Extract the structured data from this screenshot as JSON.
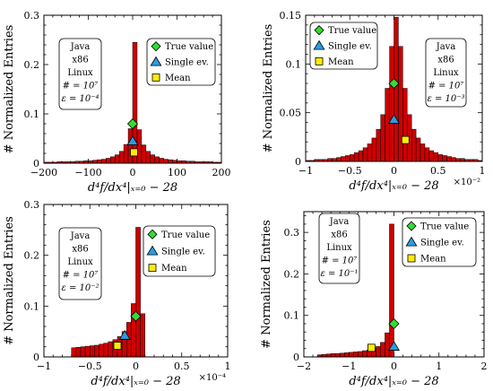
{
  "colors": {
    "bar_fill": "#cc0000",
    "bar_edge": "#000000",
    "true_value": "#33dd33",
    "single_ev": "#2a9de0",
    "mean": "#ffee00"
  },
  "chart_data": [
    {
      "type": "bar",
      "xlim": [
        -200,
        200
      ],
      "ylim": [
        0,
        0.3
      ],
      "xticks": [
        -200,
        -100,
        0,
        100,
        200
      ],
      "xtick_labels": [
        "−200",
        "−100",
        "0",
        "100",
        "200"
      ],
      "yticks": [
        0,
        0.1,
        0.2,
        0.3
      ],
      "ytick_labels": [
        "0",
        "0.1",
        "0.2",
        "0.3"
      ],
      "xlabel": "d⁴f/dx⁴|ₓ₌₀ − 28",
      "ylabel": "# Normalized Entries",
      "x_multiplier": "",
      "info": [
        "Java",
        "x86",
        "Linux",
        "# = 10⁷",
        "ε = 10⁻⁴"
      ],
      "legend": [
        "True value",
        "Single ev.",
        "Mean"
      ],
      "bin_start": -200,
      "bin_width": 10,
      "values": [
        0.002,
        0.002,
        0.002,
        0.003,
        0.003,
        0.003,
        0.003,
        0.004,
        0.004,
        0.005,
        0.005,
        0.006,
        0.007,
        0.008,
        0.01,
        0.013,
        0.017,
        0.024,
        0.038,
        0.07,
        0.245,
        0.068,
        0.037,
        0.024,
        0.017,
        0.013,
        0.01,
        0.008,
        0.007,
        0.006,
        0.005,
        0.005,
        0.004,
        0.004,
        0.003,
        0.003,
        0.003,
        0.003,
        0.002,
        0.002
      ],
      "markers": {
        "true_value": [
          0,
          0.08
        ],
        "single_ev": [
          0,
          0.045
        ],
        "mean": [
          3,
          0.022
        ]
      }
    },
    {
      "type": "bar",
      "xlim": [
        -1,
        1
      ],
      "ylim": [
        0,
        0.15
      ],
      "xticks": [
        -1,
        -0.5,
        0,
        0.5,
        1
      ],
      "xtick_labels": [
        "−1",
        "−0.5",
        "0",
        "0.5",
        "1"
      ],
      "yticks": [
        0,
        0.05,
        0.1,
        0.15
      ],
      "ytick_labels": [
        "0",
        "0.05",
        "0.1",
        "0.15"
      ],
      "xlabel": "d⁴f/dx⁴|ₓ₌₀ − 28",
      "ylabel": "# Normalized Entries",
      "x_multiplier": "×10⁻²",
      "info": [
        "Java",
        "x86",
        "Linux",
        "# = 10⁷",
        "ε = 10⁻³"
      ],
      "legend": [
        "True value",
        "Single ev.",
        "Mean"
      ],
      "bin_start": -1,
      "bin_width": 0.05,
      "values": [
        0.001,
        0.001,
        0.002,
        0.002,
        0.002,
        0.003,
        0.003,
        0.004,
        0.005,
        0.006,
        0.007,
        0.009,
        0.011,
        0.014,
        0.018,
        0.024,
        0.033,
        0.048,
        0.075,
        0.118,
        0.148,
        0.118,
        0.075,
        0.048,
        0.033,
        0.024,
        0.018,
        0.014,
        0.011,
        0.009,
        0.007,
        0.006,
        0.005,
        0.004,
        0.003,
        0.003,
        0.002,
        0.002,
        0.002,
        0.001
      ],
      "markers": {
        "true_value": [
          0,
          0.08
        ],
        "single_ev": [
          0,
          0.043
        ],
        "mean": [
          0.13,
          0.022
        ]
      }
    },
    {
      "type": "bar",
      "xlim": [
        -1,
        1
      ],
      "ylim": [
        0,
        0.3
      ],
      "xticks": [
        -1,
        -0.5,
        0,
        0.5,
        1
      ],
      "xtick_labels": [
        "−1",
        "−0.5",
        "0",
        "0.5",
        "1"
      ],
      "yticks": [
        0,
        0.1,
        0.2,
        0.3
      ],
      "ytick_labels": [
        "0",
        "0.1",
        "0.2",
        "0.3"
      ],
      "xlabel": "d⁴f/dx⁴|ₓ₌₀ − 28",
      "ylabel": "# Normalized Entries",
      "x_multiplier": "×10⁻⁴",
      "info": [
        "Java",
        "x86",
        "Linux",
        "# = 10⁷",
        "ε = 10⁻²"
      ],
      "legend": [
        "True value",
        "Single ev.",
        "Mean"
      ],
      "bin_start": -0.7,
      "bin_width": 0.05,
      "values": [
        0.018,
        0.019,
        0.02,
        0.021,
        0.022,
        0.023,
        0.025,
        0.027,
        0.03,
        0.034,
        0.04,
        0.05,
        0.068,
        0.105,
        0.255,
        0.085
      ],
      "markers": {
        "true_value": [
          0,
          0.08
        ],
        "single_ev": [
          -0.12,
          0.042
        ],
        "mean": [
          -0.2,
          0.022
        ]
      }
    },
    {
      "type": "bar",
      "xlim": [
        -2,
        2
      ],
      "ylim": [
        0,
        0.35
      ],
      "xticks": [
        -2,
        -1,
        0,
        1,
        2
      ],
      "xtick_labels": [
        "−2",
        "−1",
        "0",
        "1",
        "2"
      ],
      "yticks": [
        0,
        0.1,
        0.2,
        0.3
      ],
      "ytick_labels": [
        "0",
        "0.1",
        "0.2",
        "0.3"
      ],
      "xlabel": "d⁴f/dx⁴|ₓ₌₀ − 28",
      "ylabel": "# Normalized Entries",
      "x_multiplier": "",
      "info": [
        "Java",
        "x86",
        "Linux",
        "# = 10⁷",
        "ε = 10⁻¹"
      ],
      "legend": [
        "True value",
        "Single ev.",
        "Mean"
      ],
      "bin_start": -1.7,
      "bin_width": 0.1,
      "values": [
        0.005,
        0.006,
        0.007,
        0.008,
        0.008,
        0.009,
        0.01,
        0.011,
        0.012,
        0.013,
        0.015,
        0.017,
        0.02,
        0.025,
        0.035,
        0.058,
        0.32
      ],
      "markers": {
        "true_value": [
          0,
          0.08
        ],
        "single_ev": [
          0,
          0.025
        ],
        "mean": [
          -0.5,
          0.022
        ]
      }
    }
  ]
}
